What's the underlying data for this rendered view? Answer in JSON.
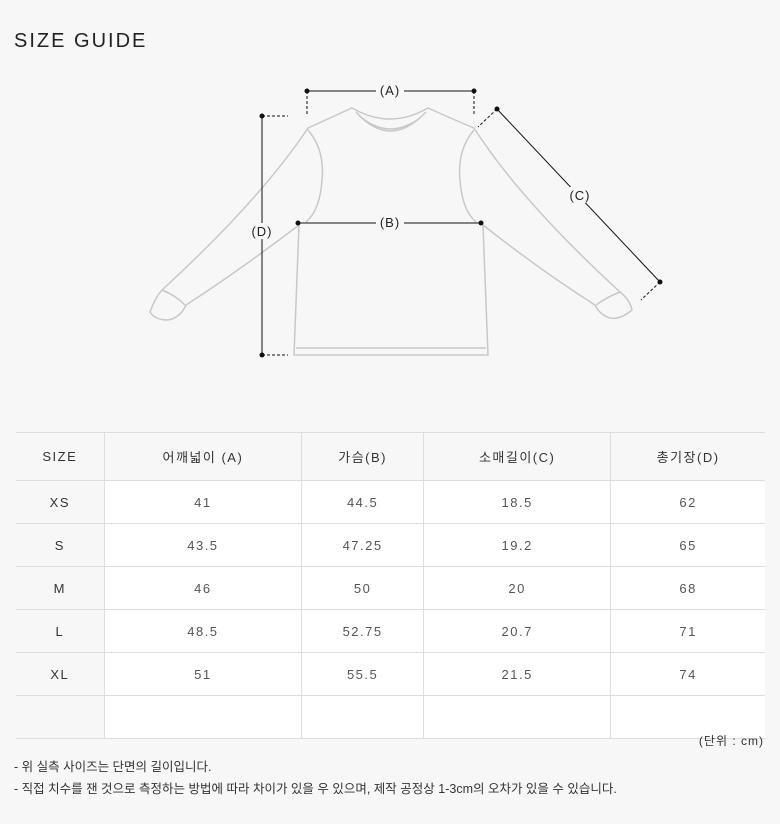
{
  "title": "SIZE GUIDE",
  "diagram": {
    "labels": {
      "a": "(A)",
      "b": "(B)",
      "c": "(C)",
      "d": "(D)"
    }
  },
  "table": {
    "headers": [
      "SIZE",
      "어깨넓이 (A)",
      "가슴(B)",
      "소매길이(C)",
      "총기장(D)"
    ],
    "rows": [
      [
        "XS",
        "41",
        "44.5",
        "18.5",
        "62"
      ],
      [
        "S",
        "43.5",
        "47.25",
        "19.2",
        "65"
      ],
      [
        "M",
        "46",
        "50",
        "20",
        "68"
      ],
      [
        "L",
        "48.5",
        "52.75",
        "20.7",
        "71"
      ],
      [
        "XL",
        "51",
        "55.5",
        "21.5",
        "74"
      ],
      [
        "",
        "",
        "",
        "",
        ""
      ]
    ]
  },
  "unit": "(단위 : cm)",
  "notes": [
    "- 위 실측 사이즈는 단면의 길이입니다.",
    "- 직접 치수를 잰 것으로 측정하는 방법에 따라 차이가 있을 우 있으며, 제작 공정상 1-3cm의 오차가 있을 수 있습니다."
  ]
}
